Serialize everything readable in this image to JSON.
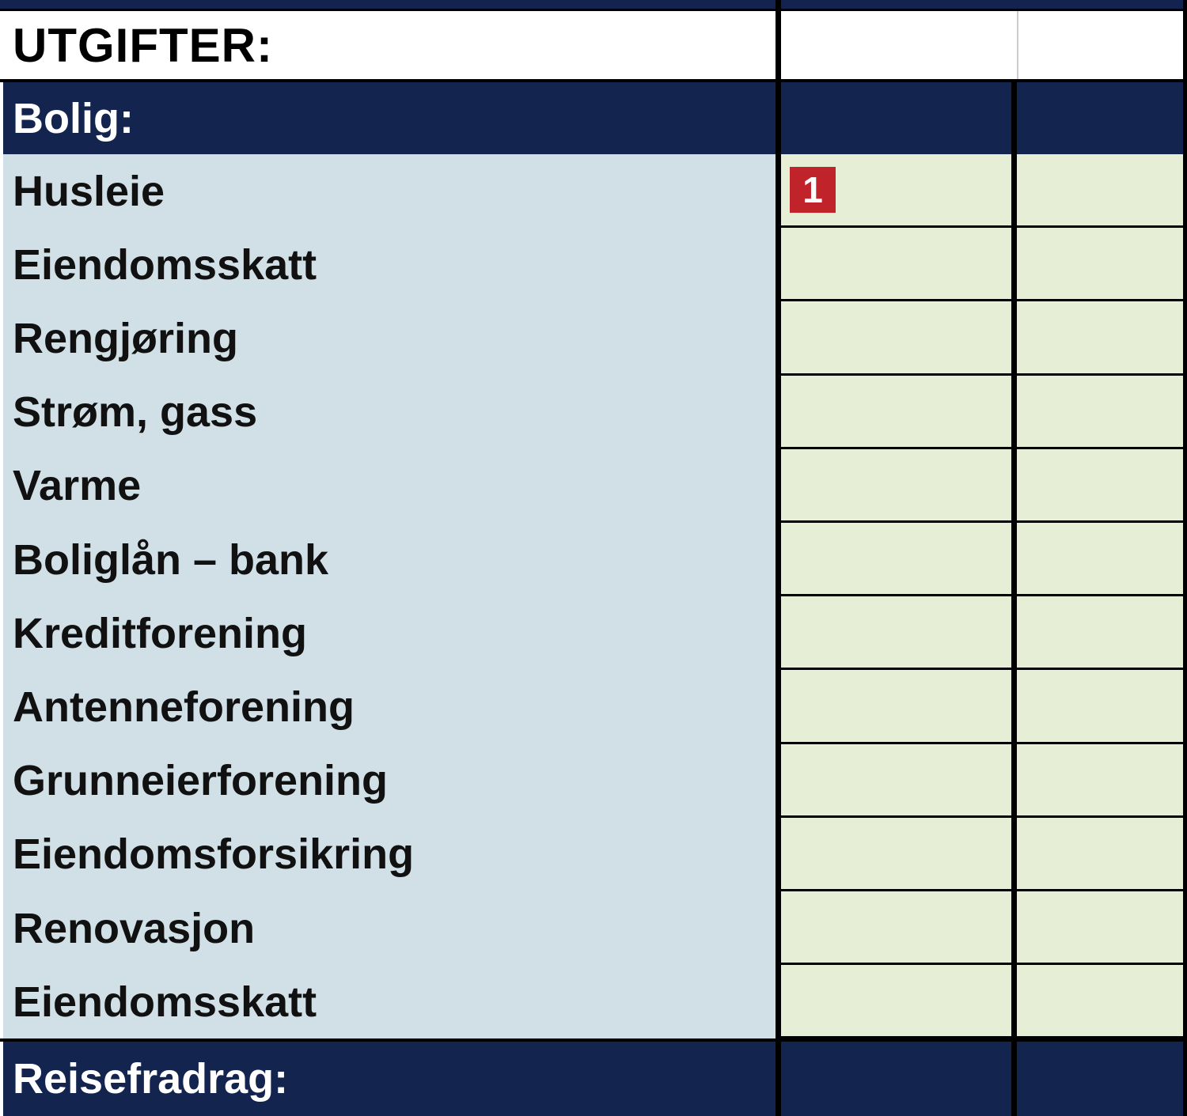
{
  "title": "UTGIFTER:",
  "sections": [
    {
      "label": "Bolig:"
    },
    {
      "label": "Reisefradrag:"
    }
  ],
  "items": [
    "Husleie",
    "Eiendomsskatt",
    "Rengjøring",
    "Strøm, gass",
    "Varme",
    "Boliglån – bank",
    "Kreditforening",
    "Antenneforening",
    "Grunneierforening",
    "Eiendomsforsikring",
    "Renovasjon",
    "Eiendomsskatt"
  ],
  "badge": "1",
  "colors": {
    "header_navy": "#13244f",
    "label_bg": "#d1e0e6",
    "input_bg": "#e6eed6",
    "badge_red": "#c1232b"
  }
}
